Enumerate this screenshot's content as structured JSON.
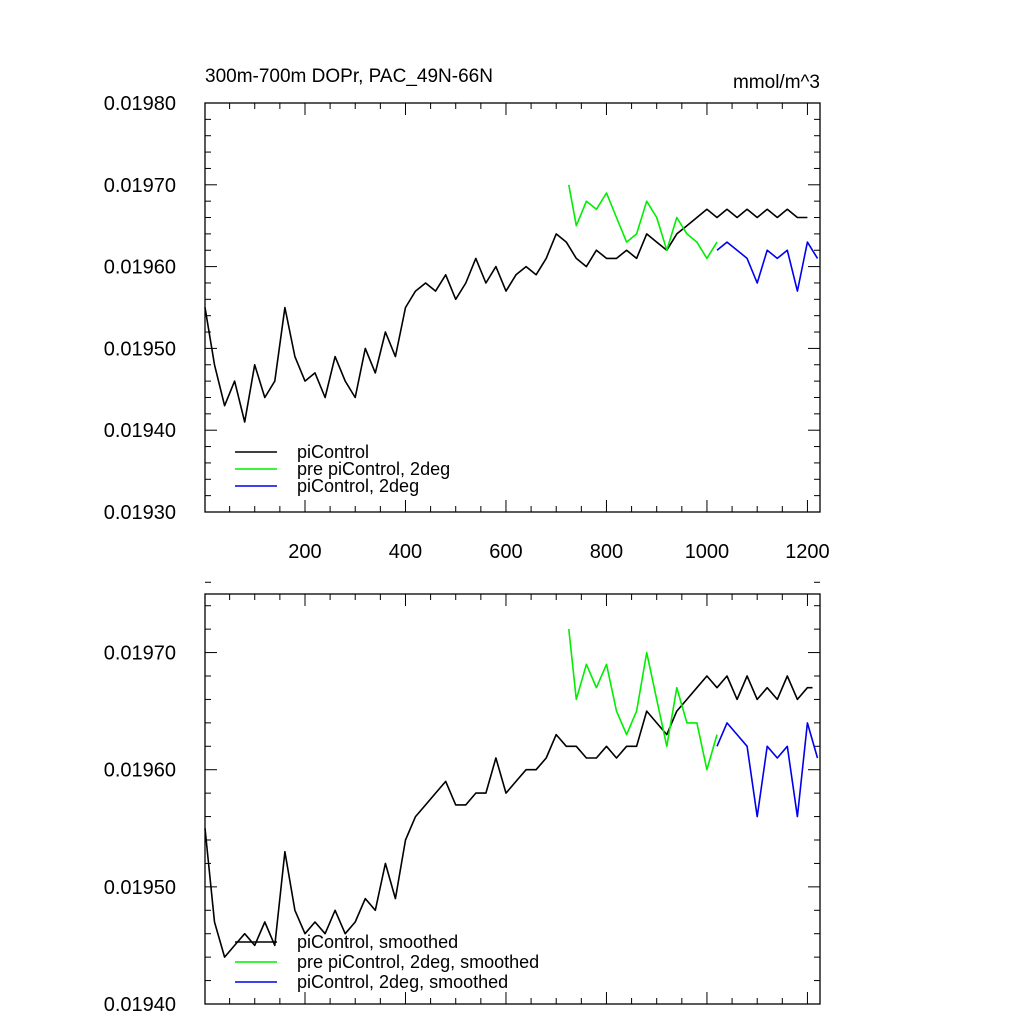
{
  "chart_data": [
    {
      "type": "line",
      "title": "300m-700m DOPr, PAC_49N-66N",
      "units": "mmol/m^3",
      "xlabel": "",
      "ylabel": "",
      "xlim": [
        1,
        1225
      ],
      "ylim": [
        0.0193,
        0.0198
      ],
      "xticks": [
        200,
        400,
        600,
        800,
        1000,
        1200
      ],
      "xtick_labels": [
        "200",
        "400",
        "600",
        "800",
        "1000",
        "1200"
      ],
      "yticks": [
        0.0193,
        0.0194,
        0.0195,
        0.0196,
        0.0197,
        0.0198
      ],
      "ytick_labels": [
        "0.01930",
        "0.01940",
        "0.01950",
        "0.01960",
        "0.01970",
        "0.01980"
      ],
      "legend_position": "bottom-left",
      "series": [
        {
          "name": "piControl",
          "color": "#000000",
          "x": [
            1,
            20,
            40,
            60,
            80,
            100,
            120,
            140,
            160,
            180,
            200,
            220,
            240,
            260,
            280,
            300,
            320,
            340,
            360,
            380,
            400,
            420,
            440,
            460,
            480,
            500,
            520,
            540,
            560,
            580,
            600,
            620,
            640,
            660,
            680,
            700,
            720,
            740,
            760,
            780,
            800,
            820,
            840,
            860,
            880,
            900,
            920,
            940,
            960,
            980,
            1000,
            1020,
            1040,
            1060,
            1080,
            1100,
            1120,
            1140,
            1160,
            1180,
            1200
          ],
          "values": [
            0.01955,
            0.01948,
            0.01943,
            0.01946,
            0.01941,
            0.01948,
            0.01944,
            0.01946,
            0.01955,
            0.01949,
            0.01946,
            0.01947,
            0.01944,
            0.01949,
            0.01946,
            0.01944,
            0.0195,
            0.01947,
            0.01952,
            0.01949,
            0.01955,
            0.01957,
            0.01958,
            0.01957,
            0.01959,
            0.01956,
            0.01958,
            0.01961,
            0.01958,
            0.0196,
            0.01957,
            0.01959,
            0.0196,
            0.01959,
            0.01961,
            0.01964,
            0.01963,
            0.01961,
            0.0196,
            0.01962,
            0.01961,
            0.01961,
            0.01962,
            0.01961,
            0.01964,
            0.01963,
            0.01962,
            0.01964,
            0.01965,
            0.01966,
            0.01967,
            0.01966,
            0.01967,
            0.01966,
            0.01967,
            0.01966,
            0.01967,
            0.01966,
            0.01967,
            0.01966,
            0.01966
          ]
        },
        {
          "name": "pre piControl, 2deg",
          "color": "#00ee00",
          "x": [
            725,
            740,
            760,
            780,
            800,
            820,
            840,
            860,
            880,
            900,
            920,
            940,
            960,
            980,
            1000,
            1020
          ],
          "values": [
            0.0197,
            0.01965,
            0.01968,
            0.01967,
            0.01969,
            0.01966,
            0.01963,
            0.01964,
            0.01968,
            0.01966,
            0.01962,
            0.01966,
            0.01964,
            0.01963,
            0.01961,
            0.01963
          ]
        },
        {
          "name": "piControl, 2deg",
          "color": "#0000ee",
          "x": [
            1020,
            1040,
            1060,
            1080,
            1100,
            1120,
            1140,
            1160,
            1180,
            1200,
            1220
          ],
          "values": [
            0.01962,
            0.01963,
            0.01962,
            0.01961,
            0.01958,
            0.01962,
            0.01961,
            0.01962,
            0.01957,
            0.01963,
            0.01961
          ]
        }
      ]
    },
    {
      "type": "line",
      "title": "",
      "xlabel": "",
      "ylabel": "",
      "xlim": [
        1,
        1225
      ],
      "ylim": [
        0.0194,
        0.01975
      ],
      "xticks": [
        200,
        400,
        600,
        800,
        1000,
        1200
      ],
      "xtick_labels": [],
      "yticks": [
        0.0194,
        0.0195,
        0.0196,
        0.0197
      ],
      "ytick_labels": [
        "0.01940",
        "0.01950",
        "0.01960",
        "0.01970"
      ],
      "legend_position": "bottom-left",
      "series": [
        {
          "name": "piControl, smoothed",
          "color": "#000000",
          "x": [
            1,
            20,
            40,
            60,
            80,
            100,
            120,
            140,
            160,
            180,
            200,
            220,
            240,
            260,
            280,
            300,
            320,
            340,
            360,
            380,
            400,
            420,
            440,
            460,
            480,
            500,
            520,
            540,
            560,
            580,
            600,
            620,
            640,
            660,
            680,
            700,
            720,
            740,
            760,
            780,
            800,
            820,
            840,
            860,
            880,
            900,
            920,
            940,
            960,
            980,
            1000,
            1020,
            1040,
            1060,
            1080,
            1100,
            1120,
            1140,
            1160,
            1180,
            1200,
            1210
          ],
          "values": [
            0.01955,
            0.01947,
            0.01944,
            0.01945,
            0.01946,
            0.01945,
            0.01947,
            0.01945,
            0.01953,
            0.01948,
            0.01946,
            0.01947,
            0.01946,
            0.01948,
            0.01946,
            0.01947,
            0.01949,
            0.01948,
            0.01952,
            0.01949,
            0.01954,
            0.01956,
            0.01957,
            0.01958,
            0.01959,
            0.01957,
            0.01957,
            0.01958,
            0.01958,
            0.01961,
            0.01958,
            0.01959,
            0.0196,
            0.0196,
            0.01961,
            0.01963,
            0.01962,
            0.01962,
            0.01961,
            0.01961,
            0.01962,
            0.01961,
            0.01962,
            0.01962,
            0.01965,
            0.01964,
            0.01963,
            0.01965,
            0.01966,
            0.01967,
            0.01968,
            0.01967,
            0.01968,
            0.01966,
            0.01968,
            0.01966,
            0.01967,
            0.01966,
            0.01968,
            0.01966,
            0.01967,
            0.01967
          ]
        },
        {
          "name": "pre piControl, 2deg, smoothed",
          "color": "#00ee00",
          "x": [
            725,
            740,
            760,
            780,
            800,
            820,
            840,
            860,
            880,
            900,
            920,
            940,
            960,
            980,
            1000,
            1020
          ],
          "values": [
            0.01972,
            0.01966,
            0.01969,
            0.01967,
            0.01969,
            0.01965,
            0.01963,
            0.01965,
            0.0197,
            0.01966,
            0.01962,
            0.01967,
            0.01964,
            0.01964,
            0.0196,
            0.01963
          ]
        },
        {
          "name": "piControl, 2deg, smoothed",
          "color": "#0000ee",
          "x": [
            1020,
            1040,
            1060,
            1080,
            1100,
            1120,
            1140,
            1160,
            1180,
            1200,
            1220
          ],
          "values": [
            0.01962,
            0.01964,
            0.01963,
            0.01962,
            0.01956,
            0.01962,
            0.01961,
            0.01962,
            0.01956,
            0.01964,
            0.01961
          ]
        }
      ]
    }
  ]
}
